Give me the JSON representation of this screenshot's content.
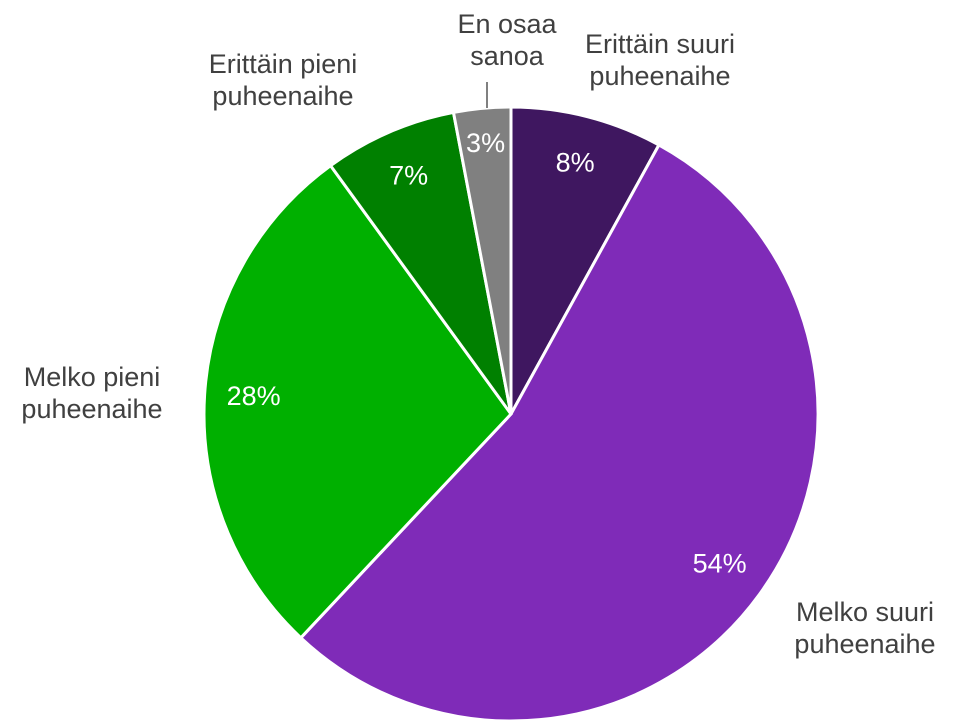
{
  "chart_data": {
    "type": "pie",
    "categories": [
      "Erittäin suuri\npuheenaihe",
      "Melko suuri\npuheenaihe",
      "Melko pieni\npuheenaihe",
      "Erittäin pieni\npuheenaihe",
      "En osaa\nsanoa"
    ],
    "values": [
      8,
      54,
      28,
      7,
      3
    ],
    "value_labels": [
      "8%",
      "54%",
      "28%",
      "7%",
      "3%"
    ],
    "colors": [
      "#3f1760",
      "#7f2bb8",
      "#00b000",
      "#008000",
      "#808080"
    ]
  }
}
